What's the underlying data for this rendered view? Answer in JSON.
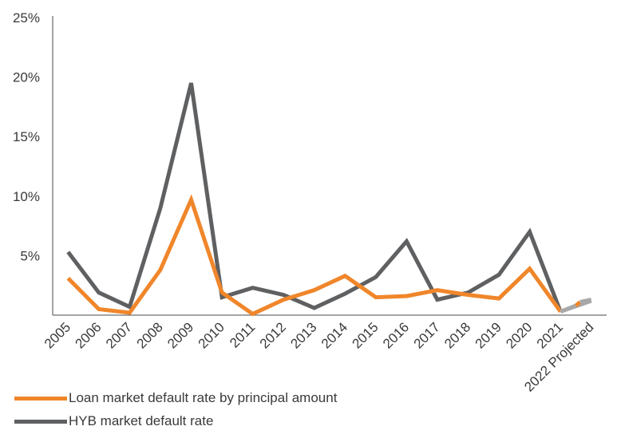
{
  "chart_data": {
    "type": "line",
    "categories": [
      "2005",
      "2006",
      "2007",
      "2008",
      "2009",
      "2010",
      "2011",
      "2012",
      "2013",
      "2014",
      "2015",
      "2016",
      "2017",
      "2018",
      "2019",
      "2020",
      "2021",
      "2022 Projected"
    ],
    "series": [
      {
        "name": "Loan market default rate by principal amount",
        "color": "#f0862a",
        "values": [
          3.1,
          0.5,
          0.2,
          3.8,
          9.7,
          1.9,
          0.1,
          1.3,
          2.1,
          3.3,
          1.5,
          1.6,
          2.1,
          1.7,
          1.4,
          3.9,
          0.3,
          1.3
        ]
      },
      {
        "name": "HYB market default rate",
        "color": "#5f6062",
        "values": [
          5.3,
          1.9,
          0.7,
          9.0,
          19.5,
          1.5,
          2.3,
          1.7,
          0.6,
          1.8,
          3.2,
          6.2,
          1.3,
          1.9,
          3.4,
          7.0,
          0.3,
          1.2
        ]
      }
    ],
    "projection_color": "#a8a8a8",
    "yticks": [
      "5%",
      "10%",
      "15%",
      "20%",
      "25%"
    ],
    "ytick_values": [
      5,
      10,
      15,
      20,
      25
    ],
    "ylim": [
      0,
      25
    ],
    "grid": false,
    "legend_position": "bottom-left"
  }
}
